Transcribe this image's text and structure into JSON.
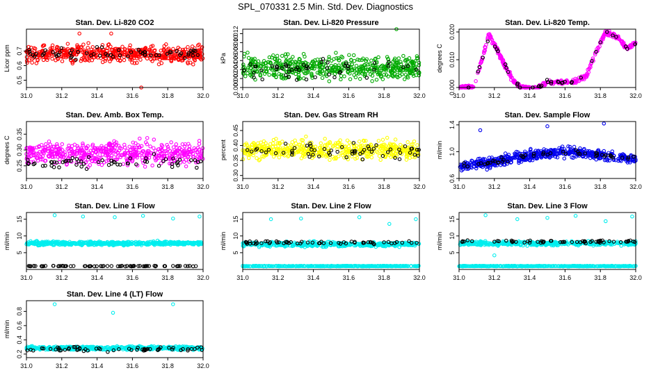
{
  "figure": {
    "title": "SPL_070331  2.5 Min. Std. Dev. Diagnostics"
  },
  "chart_data": [
    {
      "type": "scatter",
      "title": "Stan. Dev. Li-820 CO2",
      "ylabel": "Licor ppm",
      "xlim": [
        31.0,
        32.0
      ],
      "ylim": [
        0.45,
        0.85
      ],
      "yticks": [
        "0.5",
        "0.6",
        "0.7"
      ],
      "ytick_values": [
        0.5,
        0.6,
        0.7
      ],
      "xticks": [
        "31.0",
        "31.2",
        "31.4",
        "31.6",
        "31.8",
        "32.0"
      ],
      "series": [
        {
          "color": "#ff0000",
          "pattern": "band",
          "base": 0.68,
          "spread": 0.075,
          "count": 520,
          "outliers": [
            [
              31.3,
              0.82
            ],
            [
              31.48,
              0.82
            ],
            [
              31.65,
              0.45
            ]
          ]
        },
        {
          "color": "#000000",
          "pattern": "band",
          "base": 0.68,
          "spread": 0.05,
          "count": 60
        }
      ]
    },
    {
      "type": "scatter",
      "title": "Stan. Dev. Li-820 Pressure",
      "ylabel": "kPa",
      "xlim": [
        31.0,
        32.0
      ],
      "ylim": [
        0.0,
        0.013
      ],
      "yticks": [
        "0.000",
        "0.002",
        "0.004",
        "0.006",
        "0.008",
        "0.010",
        "0.012"
      ],
      "ytick_values": [
        0,
        0.002,
        0.004,
        0.006,
        0.008,
        0.01,
        0.012
      ],
      "xticks": [
        "31.0",
        "31.2",
        "31.4",
        "31.6",
        "31.8",
        "32.0"
      ],
      "series": [
        {
          "color": "#00aa00",
          "pattern": "band",
          "base": 0.0045,
          "spread": 0.0035,
          "count": 520,
          "outliers": [
            [
              31.87,
              0.013
            ]
          ]
        },
        {
          "color": "#000000",
          "pattern": "band",
          "base": 0.004,
          "spread": 0.003,
          "count": 50
        }
      ]
    },
    {
      "type": "scatter",
      "title": "Stan. Dev. Li-820 Temp.",
      "ylabel": "degrees C",
      "xlim": [
        31.0,
        32.0
      ],
      "ylim": [
        0.0,
        0.021
      ],
      "yticks": [
        "0.000",
        "0.010",
        "0.020"
      ],
      "ytick_values": [
        0,
        0.01,
        0.02
      ],
      "xticks": [
        "31.0",
        "31.2",
        "31.4",
        "31.6",
        "31.8",
        "32.0"
      ],
      "series": [
        {
          "color": "#ff00ff",
          "pattern": "curve",
          "curve": [
            [
              31.0,
              0.0
            ],
            [
              31.08,
              0.0
            ],
            [
              31.12,
              0.008
            ],
            [
              31.17,
              0.019
            ],
            [
              31.22,
              0.013
            ],
            [
              31.3,
              0.003
            ],
            [
              31.35,
              0.0
            ],
            [
              31.45,
              0.0
            ],
            [
              31.5,
              0.002
            ],
            [
              31.65,
              0.002
            ],
            [
              31.72,
              0.004
            ],
            [
              31.77,
              0.012
            ],
            [
              31.83,
              0.02
            ],
            [
              31.9,
              0.018
            ],
            [
              31.95,
              0.014
            ],
            [
              32.0,
              0.016
            ]
          ],
          "spread": 0.001,
          "count": 420
        },
        {
          "color": "#000000",
          "pattern": "curve",
          "curve": [
            [
              31.0,
              0.0
            ],
            [
              31.08,
              0.0
            ],
            [
              31.12,
              0.008
            ],
            [
              31.17,
              0.018
            ],
            [
              31.22,
              0.013
            ],
            [
              31.3,
              0.003
            ],
            [
              31.35,
              0.0
            ],
            [
              31.45,
              0.0
            ],
            [
              31.5,
              0.002
            ],
            [
              31.65,
              0.002
            ],
            [
              31.72,
              0.004
            ],
            [
              31.77,
              0.012
            ],
            [
              31.83,
              0.02
            ],
            [
              31.9,
              0.018
            ],
            [
              31.95,
              0.014
            ],
            [
              32.0,
              0.016
            ]
          ],
          "spread": 0.0008,
          "count": 40
        }
      ]
    },
    {
      "type": "scatter",
      "title": "Stan. Dev. Amb. Box Temp.",
      "ylabel": "degrees C",
      "xlim": [
        31.0,
        32.0
      ],
      "ylim": [
        0.21,
        0.39
      ],
      "yticks": [
        "0.25",
        "0.30",
        "0.35"
      ],
      "ytick_values": [
        0.25,
        0.3,
        0.35
      ],
      "xticks": [
        "31.0",
        "31.2",
        "31.4",
        "31.6",
        "31.8",
        "32.0"
      ],
      "series": [
        {
          "color": "#ff00ff",
          "pattern": "band",
          "base": 0.29,
          "spread": 0.045,
          "count": 520
        },
        {
          "color": "#000000",
          "pattern": "band",
          "base": 0.26,
          "spread": 0.025,
          "count": 60
        }
      ]
    },
    {
      "type": "scatter",
      "title": "Stan. Dev. Gas Stream RH",
      "ylabel": "percent",
      "xlim": [
        31.0,
        32.0
      ],
      "ylim": [
        0.29,
        0.48
      ],
      "yticks": [
        "0.30",
        "0.35",
        "0.40",
        "0.45"
      ],
      "ytick_values": [
        0.3,
        0.35,
        0.4,
        0.45
      ],
      "xticks": [
        "31.0",
        "31.2",
        "31.4",
        "31.6",
        "31.8",
        "32.0"
      ],
      "series": [
        {
          "color": "#ffff00",
          "pattern": "band",
          "base": 0.385,
          "spread": 0.04,
          "count": 520
        },
        {
          "color": "#000000",
          "pattern": "band",
          "base": 0.385,
          "spread": 0.035,
          "count": 60
        }
      ]
    },
    {
      "type": "scatter",
      "title": "Stan. Dev. Sample Flow",
      "ylabel": "ml/min",
      "xlim": [
        31.0,
        32.0
      ],
      "ylim": [
        0.6,
        1.45
      ],
      "yticks": [
        "0.6",
        "1.0",
        "1.4"
      ],
      "ytick_values": [
        0.6,
        1.0,
        1.4
      ],
      "xticks": [
        "31.0",
        "31.2",
        "31.4",
        "31.6",
        "31.8",
        "32.0"
      ],
      "series": [
        {
          "color": "#0000ee",
          "pattern": "curve",
          "curve": [
            [
              31.0,
              0.78
            ],
            [
              31.2,
              0.85
            ],
            [
              31.4,
              0.95
            ],
            [
              31.6,
              1.0
            ],
            [
              31.8,
              0.95
            ],
            [
              32.0,
              0.88
            ]
          ],
          "spread": 0.1,
          "count": 520,
          "outliers": [
            [
              31.12,
              1.32
            ],
            [
              31.5,
              1.38
            ],
            [
              31.82,
              1.42
            ]
          ]
        },
        {
          "color": "#000000",
          "pattern": "curve",
          "curve": [
            [
              31.0,
              0.78
            ],
            [
              31.2,
              0.85
            ],
            [
              31.4,
              0.95
            ],
            [
              31.6,
              1.0
            ],
            [
              31.8,
              0.95
            ],
            [
              32.0,
              0.88
            ]
          ],
          "spread": 0.05,
          "count": 50
        }
      ]
    },
    {
      "type": "scatter",
      "title": "Stan. Dev. Line 1 Flow",
      "ylabel": "ml/min",
      "xlim": [
        31.0,
        32.0
      ],
      "ylim": [
        0,
        17
      ],
      "yticks": [
        "5",
        "10",
        "15"
      ],
      "ytick_values": [
        5,
        10,
        15
      ],
      "xticks": [
        "31.0",
        "31.2",
        "31.4",
        "31.6",
        "31.8",
        "32.0"
      ],
      "series": [
        {
          "color": "#00eeee",
          "pattern": "band",
          "base": 7.8,
          "spread": 0.7,
          "count": 520,
          "outliers": [
            [
              31.16,
              16.2
            ],
            [
              31.32,
              15.8
            ],
            [
              31.5,
              15.6
            ],
            [
              31.66,
              16.0
            ],
            [
              31.83,
              15.2
            ],
            [
              31.98,
              15.8
            ]
          ]
        },
        {
          "color": "#000000",
          "pattern": "band",
          "base": 1.0,
          "spread": 0.12,
          "count": 80
        }
      ]
    },
    {
      "type": "scatter",
      "title": "Stan. Dev. Line 2 Flow",
      "ylabel": "ml/min",
      "xlim": [
        31.0,
        32.0
      ],
      "ylim": [
        0,
        17
      ],
      "yticks": [
        "5",
        "10",
        "15"
      ],
      "ytick_values": [
        5,
        10,
        15
      ],
      "xticks": [
        "31.0",
        "31.2",
        "31.4",
        "31.6",
        "31.8",
        "32.0"
      ],
      "series": [
        {
          "color": "#00eeee",
          "pattern": "band",
          "base": 7.5,
          "spread": 0.9,
          "count": 420,
          "outliers": [
            [
              31.16,
              15.0
            ],
            [
              31.33,
              15.2
            ],
            [
              31.66,
              15.6
            ],
            [
              31.83,
              13.6
            ],
            [
              31.98,
              15.0
            ]
          ]
        },
        {
          "color": "#00eeee",
          "pattern": "band",
          "base": 1.0,
          "spread": 0.12,
          "count": 420
        },
        {
          "color": "#000000",
          "pattern": "band",
          "base": 8.0,
          "spread": 0.6,
          "count": 60
        }
      ]
    },
    {
      "type": "scatter",
      "title": "Stan. Dev. Line 3 Flow",
      "ylabel": "ml/min",
      "xlim": [
        31.0,
        32.0
      ],
      "ylim": [
        0,
        17
      ],
      "yticks": [
        "5",
        "10",
        "15"
      ],
      "ytick_values": [
        5,
        10,
        15
      ],
      "xticks": [
        "31.0",
        "31.2",
        "31.4",
        "31.6",
        "31.8",
        "32.0"
      ],
      "series": [
        {
          "color": "#00eeee",
          "pattern": "band",
          "base": 7.8,
          "spread": 0.8,
          "count": 420,
          "outliers": [
            [
              31.15,
              16.2
            ],
            [
              31.33,
              15.0
            ],
            [
              31.5,
              15.4
            ],
            [
              31.66,
              16.0
            ],
            [
              31.83,
              14.4
            ],
            [
              31.98,
              15.8
            ],
            [
              31.2,
              4.2
            ]
          ]
        },
        {
          "color": "#00eeee",
          "pattern": "band",
          "base": 1.0,
          "spread": 0.12,
          "count": 420
        },
        {
          "color": "#000000",
          "pattern": "band",
          "base": 8.3,
          "spread": 0.5,
          "count": 60
        }
      ]
    },
    {
      "type": "scatter",
      "title": "Stan. Dev. Line 4 (LT) Flow",
      "ylabel": "ml/min",
      "xlim": [
        31.0,
        32.0
      ],
      "ylim": [
        0.15,
        0.95
      ],
      "yticks": [
        "0.2",
        "0.4",
        "0.6",
        "0.8"
      ],
      "ytick_values": [
        0.2,
        0.4,
        0.6,
        0.8
      ],
      "xticks": [
        "31.0",
        "31.2",
        "31.4",
        "31.6",
        "31.8",
        "32.0"
      ],
      "series": [
        {
          "color": "#00eeee",
          "pattern": "band",
          "base": 0.285,
          "spread": 0.035,
          "count": 520,
          "outliers": [
            [
              31.16,
              0.9
            ],
            [
              31.49,
              0.78
            ],
            [
              31.83,
              0.9
            ]
          ]
        },
        {
          "color": "#000000",
          "pattern": "band",
          "base": 0.27,
          "spread": 0.04,
          "count": 60
        }
      ]
    }
  ]
}
